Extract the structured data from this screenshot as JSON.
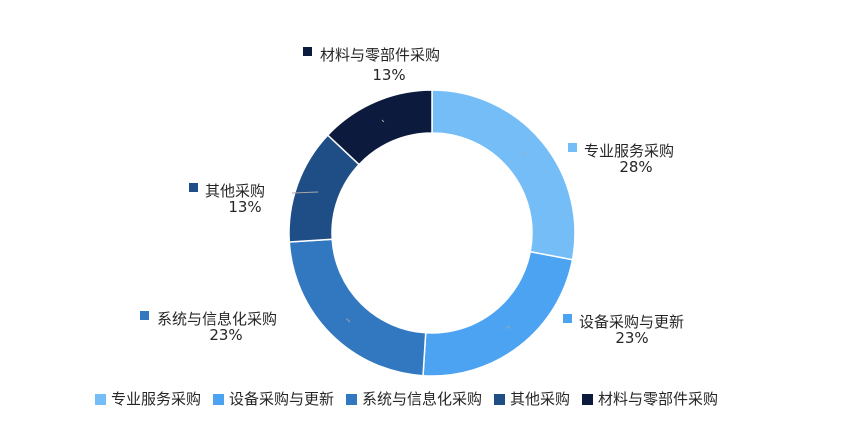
{
  "chart_data": {
    "type": "pie",
    "variant": "donut",
    "title": "",
    "legend_position": "bottom",
    "slices": [
      {
        "label": "专业服务采购",
        "value": 28,
        "pct_label": "28%",
        "color": "#75BDF7"
      },
      {
        "label": "设备采购与更新",
        "value": 23,
        "pct_label": "23%",
        "color": "#4BA3F2"
      },
      {
        "label": "系统与信息化采购",
        "value": 23,
        "pct_label": "23%",
        "color": "#3278C0"
      },
      {
        "label": "其他采购",
        "value": 13,
        "pct_label": "13%",
        "color": "#1E4E85"
      },
      {
        "label": "材料与零部件采购",
        "value": 13,
        "pct_label": "13%",
        "color": "#0C1A3D"
      }
    ]
  }
}
